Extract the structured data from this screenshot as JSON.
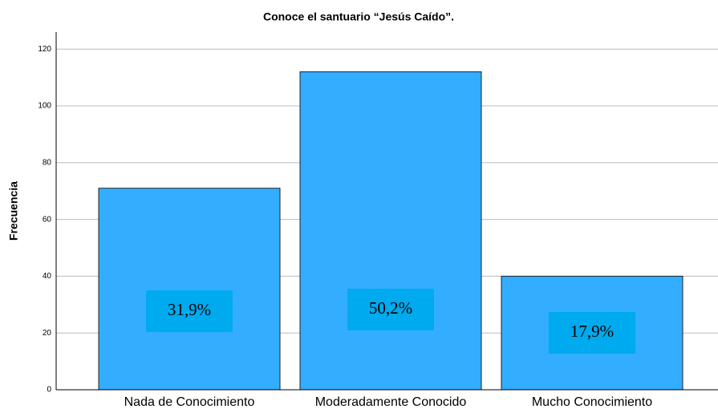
{
  "chart_data": {
    "type": "bar",
    "title": "Conoce el santuario “Jesús Caído”.",
    "ylabel": "Frecuencia",
    "categories": [
      "Nada de Conocimiento",
      "Moderadamente Conocido",
      "Mucho Conocimiento"
    ],
    "values": [
      71,
      112,
      40
    ],
    "annotations": [
      "31,9%",
      "50,2%",
      "17,9%"
    ],
    "color": "#33adff",
    "ylim": [
      0,
      126
    ],
    "yticks": [
      0,
      20,
      40,
      60,
      80,
      100,
      120
    ],
    "grid": true
  }
}
